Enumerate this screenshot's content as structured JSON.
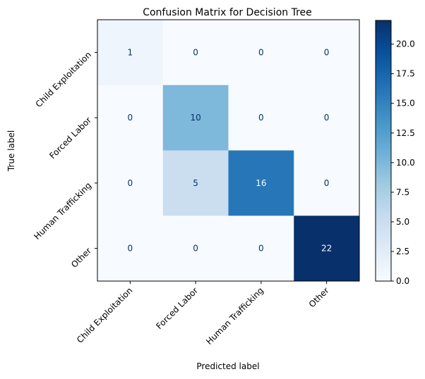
{
  "chart_data": {
    "type": "heatmap",
    "title": "Confusion Matrix for Decision Tree",
    "xlabel": "Predicted label",
    "ylabel": "True label",
    "x_categories": [
      "Child Exploitation",
      "Forced Labor",
      "Human Trafficking",
      "Other"
    ],
    "y_categories": [
      "Child Exploitation",
      "Forced Labor",
      "Human Trafficking",
      "Other"
    ],
    "values": [
      [
        1,
        0,
        0,
        0
      ],
      [
        0,
        10,
        0,
        0
      ],
      [
        0,
        5,
        16,
        0
      ],
      [
        0,
        0,
        0,
        22
      ]
    ],
    "colormap": "Blues",
    "colorbar": {
      "range": [
        0,
        22
      ],
      "ticks": [
        0.0,
        2.5,
        5.0,
        7.5,
        10.0,
        12.5,
        15.0,
        17.5,
        20.0
      ],
      "tick_labels": [
        "0.0",
        "2.5",
        "5.0",
        "7.5",
        "10.0",
        "12.5",
        "15.0",
        "17.5",
        "20.0"
      ]
    },
    "text_color_dark": "#08306b",
    "text_color_light": "#f7fbff"
  }
}
